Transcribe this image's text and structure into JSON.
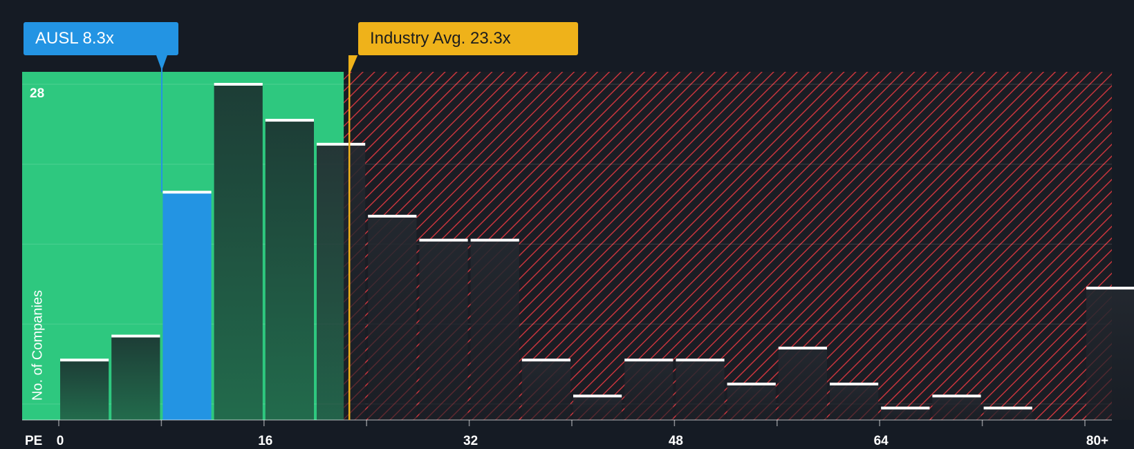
{
  "chart_data": {
    "type": "bar",
    "title": "",
    "xlabel": "PE",
    "ylabel": "No. of Companies",
    "x_ticks": [
      "0",
      "16",
      "32",
      "48",
      "64",
      "80+"
    ],
    "y_max_label": "28",
    "ylim": [
      0,
      28
    ],
    "xlim": [
      0,
      82
    ],
    "bin_width": 4,
    "bins": [
      {
        "x": 0,
        "value": 5
      },
      {
        "x": 4,
        "value": 7
      },
      {
        "x": 8,
        "value": 19,
        "highlight": true
      },
      {
        "x": 12,
        "value": 28
      },
      {
        "x": 16,
        "value": 25
      },
      {
        "x": 20,
        "value": 23
      },
      {
        "x": 24,
        "value": 17
      },
      {
        "x": 28,
        "value": 15
      },
      {
        "x": 32,
        "value": 15
      },
      {
        "x": 36,
        "value": 5
      },
      {
        "x": 40,
        "value": 2
      },
      {
        "x": 44,
        "value": 5
      },
      {
        "x": 48,
        "value": 5
      },
      {
        "x": 52,
        "value": 3
      },
      {
        "x": 56,
        "value": 6
      },
      {
        "x": 60,
        "value": 3
      },
      {
        "x": 64,
        "value": 1
      },
      {
        "x": 68,
        "value": 2
      },
      {
        "x": 72,
        "value": 1
      },
      {
        "x": 76,
        "value": 0
      },
      {
        "x": 80,
        "value": 11
      }
    ],
    "company": {
      "ticker": "AUSL",
      "pe": 8.3,
      "label": "AUSL 8.3x"
    },
    "industry": {
      "pe": 23.3,
      "label": "Industry Avg. 23.3x"
    },
    "colors": {
      "background": "#151b24",
      "undervalued_zone": "#2ec87f",
      "overvalued_stripe": "#d9363f",
      "company": "#2394e3",
      "industry": "#efb21a",
      "bar_cap": "#ffffff"
    }
  }
}
